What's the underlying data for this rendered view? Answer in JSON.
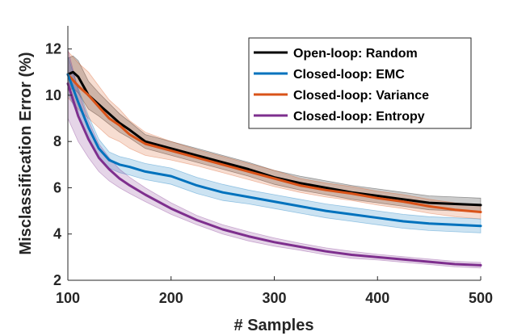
{
  "chart_data": {
    "type": "line",
    "title": "",
    "xlabel": "# Samples",
    "ylabel": "Misclassification Error (%)",
    "xlim": [
      100,
      500
    ],
    "ylim": [
      2,
      13
    ],
    "xticks": [
      100,
      200,
      300,
      400,
      500
    ],
    "yticks": [
      2,
      4,
      6,
      8,
      10,
      12
    ],
    "grid": false,
    "legend_position": "top-right",
    "series": [
      {
        "name": "Open-loop: Random",
        "color": "#000000",
        "x": [
          100,
          105,
          110,
          120,
          130,
          140,
          150,
          160,
          175,
          200,
          225,
          250,
          275,
          300,
          325,
          350,
          375,
          400,
          425,
          450,
          475,
          500
        ],
        "y": [
          10.9,
          11.0,
          10.8,
          10.0,
          9.6,
          9.2,
          8.8,
          8.5,
          8.0,
          7.7,
          7.4,
          7.1,
          6.8,
          6.45,
          6.2,
          6.0,
          5.8,
          5.65,
          5.5,
          5.35,
          5.3,
          5.25
        ],
        "band": [
          0.7,
          0.7,
          0.7,
          0.6,
          0.5,
          0.45,
          0.4,
          0.35,
          0.3,
          0.3,
          0.3,
          0.3,
          0.3,
          0.3,
          0.3,
          0.3,
          0.3,
          0.3,
          0.3,
          0.3,
          0.3,
          0.3
        ]
      },
      {
        "name": "Closed-loop: EMC",
        "color": "#0072BD",
        "x": [
          100,
          110,
          120,
          130,
          140,
          150,
          160,
          175,
          200,
          225,
          250,
          275,
          300,
          325,
          350,
          375,
          400,
          425,
          450,
          475,
          500
        ],
        "y": [
          10.9,
          9.7,
          8.6,
          7.7,
          7.2,
          7.0,
          6.9,
          6.7,
          6.5,
          6.1,
          5.8,
          5.6,
          5.4,
          5.2,
          5.0,
          4.85,
          4.7,
          4.55,
          4.45,
          4.4,
          4.35
        ],
        "band": [
          0.8,
          0.6,
          0.5,
          0.4,
          0.35,
          0.35,
          0.35,
          0.35,
          0.35,
          0.35,
          0.35,
          0.3,
          0.3,
          0.3,
          0.3,
          0.3,
          0.3,
          0.3,
          0.3,
          0.3,
          0.3
        ]
      },
      {
        "name": "Closed-loop: Variance",
        "color": "#D95319",
        "x": [
          100,
          110,
          120,
          130,
          140,
          150,
          160,
          175,
          200,
          225,
          250,
          275,
          300,
          325,
          350,
          375,
          400,
          425,
          450,
          475,
          500
        ],
        "y": [
          10.9,
          10.4,
          10.0,
          9.5,
          9.0,
          8.7,
          8.3,
          7.9,
          7.6,
          7.3,
          7.0,
          6.7,
          6.4,
          6.1,
          5.9,
          5.75,
          5.55,
          5.4,
          5.2,
          5.05,
          4.95
        ],
        "band": [
          1.0,
          1.0,
          1.0,
          0.9,
          0.8,
          0.7,
          0.6,
          0.5,
          0.4,
          0.35,
          0.35,
          0.35,
          0.35,
          0.3,
          0.3,
          0.3,
          0.3,
          0.3,
          0.3,
          0.3,
          0.3
        ]
      },
      {
        "name": "Closed-loop: Entropy",
        "color": "#7E2F8E",
        "x": [
          100,
          110,
          120,
          130,
          140,
          150,
          160,
          175,
          200,
          225,
          250,
          275,
          300,
          325,
          350,
          375,
          400,
          425,
          450,
          475,
          500
        ],
        "y": [
          10.5,
          9.1,
          8.1,
          7.3,
          6.8,
          6.4,
          6.1,
          5.7,
          5.1,
          4.6,
          4.2,
          3.9,
          3.65,
          3.45,
          3.25,
          3.1,
          3.0,
          2.9,
          2.8,
          2.7,
          2.65
        ],
        "band": [
          1.5,
          1.1,
          0.8,
          0.6,
          0.5,
          0.4,
          0.35,
          0.3,
          0.25,
          0.2,
          0.2,
          0.2,
          0.18,
          0.15,
          0.15,
          0.15,
          0.12,
          0.12,
          0.12,
          0.12,
          0.12
        ]
      }
    ]
  }
}
